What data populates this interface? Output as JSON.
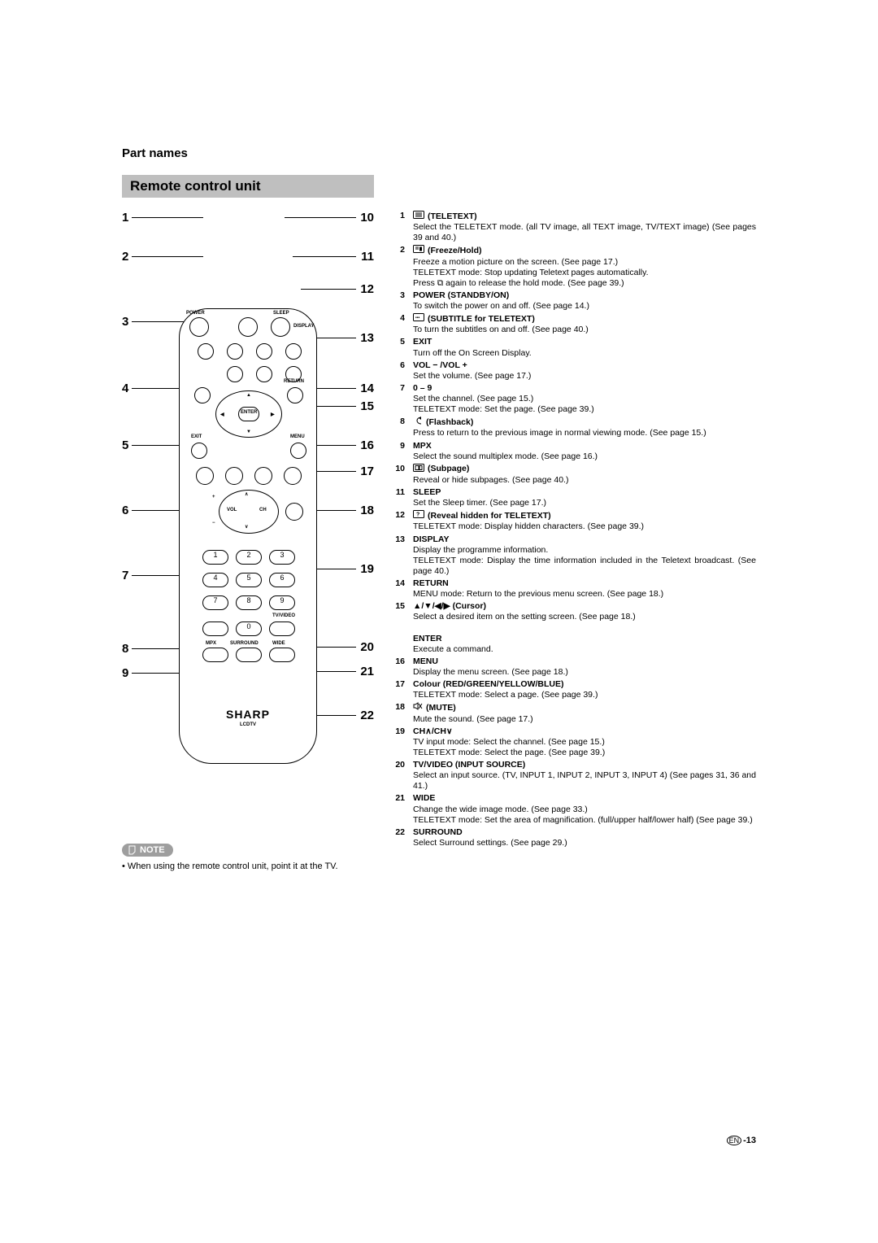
{
  "section_title": "Part names",
  "subsection_title": "Remote control unit",
  "note_label": "NOTE",
  "note_text": "• When using the remote control unit, point it at the TV.",
  "callouts_left": [
    "1",
    "2",
    "3",
    "4",
    "5",
    "6",
    "7",
    "8",
    "9"
  ],
  "callouts_right": [
    "10",
    "11",
    "12",
    "13",
    "14",
    "15",
    "16",
    "17",
    "18",
    "19",
    "20",
    "21",
    "22"
  ],
  "remote_labels": {
    "power": "POWER",
    "sleep": "SLEEP",
    "display": "DISPLAY",
    "return": "RETURN",
    "exit": "EXIT",
    "menu": "MENU",
    "enter": "ENTER",
    "vol": "VOL",
    "ch": "CH",
    "tvvideo": "TV/VIDEO",
    "mpx": "MPX",
    "surround": "SURROUND",
    "wide": "WIDE",
    "brand": "SHARP",
    "brand_sub": "LCDTV"
  },
  "items": [
    {
      "n": "1",
      "icon": "teletext",
      "title": "(TELETEXT)",
      "text": "Select the TELETEXT mode. (all TV image, all TEXT image, TV/TEXT image) (See pages 39 and 40.)"
    },
    {
      "n": "2",
      "icon": "freeze",
      "title": "(Freeze/Hold)",
      "text": "Freeze a motion picture on the screen. (See page 17.)\nTELETEXT mode: Stop updating Teletext pages automatically.\nPress ⧉ again to release the hold mode. (See page 39.)"
    },
    {
      "n": "3",
      "icon": "",
      "title": "POWER (STANDBY/ON)",
      "text": "To switch the power on and off. (See page 14.)"
    },
    {
      "n": "4",
      "icon": "subtitle",
      "title": "(SUBTITLE for TELETEXT)",
      "text": "To turn the subtitles on and off. (See page 40.)"
    },
    {
      "n": "5",
      "icon": "",
      "title": "EXIT",
      "text": "Turn off the On Screen Display."
    },
    {
      "n": "6",
      "icon": "",
      "title": "VOL − /VOL +",
      "text": "Set the volume. (See page 17.)"
    },
    {
      "n": "7",
      "icon": "",
      "title": "0 – 9",
      "text": "Set the channel. (See page 15.)\nTELETEXT mode: Set the page. (See page 39.)"
    },
    {
      "n": "8",
      "icon": "flashback",
      "title": "(Flashback)",
      "text": "Press to return to the previous image in normal viewing mode. (See page 15.)"
    },
    {
      "n": "9",
      "icon": "",
      "title": "MPX",
      "text": "Select the sound multiplex mode. (See page 16.)"
    },
    {
      "n": "10",
      "icon": "subpage",
      "title": "(Subpage)",
      "text": "Reveal or hide subpages. (See page 40.)"
    },
    {
      "n": "11",
      "icon": "",
      "title": "SLEEP",
      "text": "Set the Sleep timer. (See page 17.)"
    },
    {
      "n": "12",
      "icon": "reveal",
      "title": "(Reveal hidden for TELETEXT)",
      "text": "TELETEXT mode: Display hidden characters. (See page 39.)"
    },
    {
      "n": "13",
      "icon": "",
      "title": "DISPLAY",
      "text": "Display the programme information.\nTELETEXT mode: Display the time information included in the Teletext broadcast. (See page 40.)"
    },
    {
      "n": "14",
      "icon": "",
      "title": "RETURN",
      "text": "MENU mode: Return to the previous menu screen. (See page 18.)"
    },
    {
      "n": "15",
      "icon": "",
      "title": "▲/▼/◀/▶ (Cursor)",
      "text": "Select a desired item on the setting screen. (See page 18.)\nENTER\nExecute a command.",
      "enter": "ENTER",
      "enter_text": "Execute a command."
    },
    {
      "n": "16",
      "icon": "",
      "title": "MENU",
      "text": "Display the menu screen. (See page 18.)"
    },
    {
      "n": "17",
      "icon": "",
      "title": "Colour (RED/GREEN/YELLOW/BLUE)",
      "text": "TELETEXT mode: Select a page. (See page 39.)"
    },
    {
      "n": "18",
      "icon": "mute",
      "title": "(MUTE)",
      "text": "Mute the sound. (See page 17.)"
    },
    {
      "n": "19",
      "icon": "",
      "title": "CH∧/CH∨",
      "text": "TV input mode: Select the channel. (See page 15.)\nTELETEXT mode: Select the page. (See page 39.)"
    },
    {
      "n": "20",
      "icon": "",
      "title": "TV/VIDEO (INPUT SOURCE)",
      "text": "Select an input source. (TV, INPUT 1, INPUT 2, INPUT 3, INPUT 4) (See pages 31, 36 and 41.)"
    },
    {
      "n": "21",
      "icon": "",
      "title": "WIDE",
      "text": "Change the wide image mode. (See page 33.)\nTELETEXT mode: Set the area of magnification. (full/upper half/lower half) (See page 39.)"
    },
    {
      "n": "22",
      "icon": "",
      "title": "SURROUND",
      "text": "Select Surround settings. (See page 29.)"
    }
  ],
  "page_number": "-13",
  "page_lang": "EN"
}
